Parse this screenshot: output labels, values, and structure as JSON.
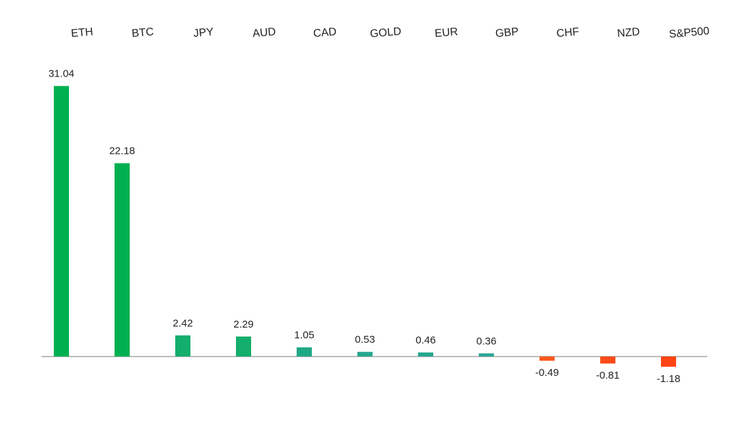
{
  "chart_data": {
    "type": "bar",
    "categories": [
      "ETH",
      "BTC",
      "JPY",
      "AUD",
      "CAD",
      "GOLD",
      "EUR",
      "GBP",
      "CHF",
      "NZD",
      "S&P500"
    ],
    "values": [
      31.04,
      22.18,
      2.42,
      2.29,
      1.05,
      0.53,
      0.46,
      0.36,
      -0.49,
      -0.81,
      -1.18
    ],
    "colors": [
      "#00b050",
      "#00b050",
      "#13ad6c",
      "#13ad6c",
      "#1fa884",
      "#25a68f",
      "#25a68f",
      "#2aa597",
      "#ff5a1f",
      "#ff4d1a",
      "#ff4514"
    ],
    "ylim": [
      -8,
      36
    ]
  }
}
